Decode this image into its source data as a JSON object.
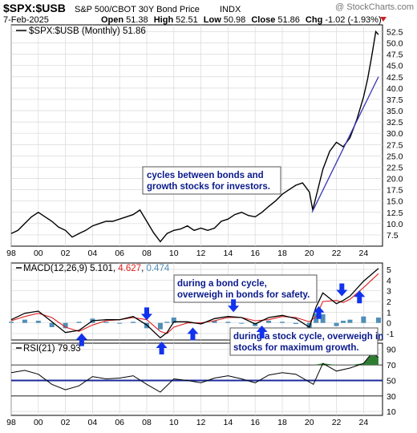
{
  "header": {
    "symbol": "$SPX:$USB",
    "description": "S&P 500/CBOT 30Y Bond Price",
    "exchange": "INDX",
    "watermark": "@ StockCharts.com",
    "date": "7-Feb-2025",
    "open_label": "Open",
    "open": "51.38",
    "high_label": "High",
    "high": "52.51",
    "low_label": "Low",
    "low": "50.98",
    "close_label": "Close",
    "close": "51.86",
    "chg_label": "Chg",
    "chg": "-1.02 (-1.93%)"
  },
  "colors": {
    "price": "#000000",
    "trendline": "#3535b8",
    "macd_line": "#000000",
    "signal_line": "#e02020",
    "histogram": "#4f8fb8",
    "rsi_line": "#000000",
    "rsi_fill": "#2e7d32",
    "rsi_50_line": "#1a2a9c",
    "annotation_text": "#0a1a8c",
    "arrow": "#1133ee",
    "grid": "#d8d8d8"
  },
  "chart_data": [
    {
      "type": "line",
      "title": "$SPX:$USB (Monthly) 51.86",
      "series": [
        {
          "name": "$SPX:$USB (Monthly) 51.86",
          "x": [
            1998,
            1998.5,
            1999,
            1999.5,
            2000,
            2000.5,
            2001,
            2001.5,
            2002,
            2002.5,
            2003,
            2003.5,
            2004,
            2004.5,
            2005,
            2005.5,
            2006,
            2006.5,
            2007,
            2007.5,
            2008,
            2008.5,
            2009,
            2009.5,
            2010,
            2010.5,
            2011,
            2011.5,
            2012,
            2012.5,
            2013,
            2013.5,
            2014,
            2014.5,
            2015,
            2015.5,
            2016,
            2016.5,
            2017,
            2017.5,
            2018,
            2018.5,
            2019,
            2019.5,
            2020,
            2020.25,
            2020.5,
            2021,
            2021.5,
            2022,
            2022.5,
            2023,
            2023.5,
            2024,
            2024.3,
            2024.6,
            2024.9,
            2025.1
          ],
          "values": [
            7.8,
            8.5,
            10,
            11.5,
            12.5,
            11.5,
            10.5,
            9.2,
            8.5,
            7,
            7.8,
            8.5,
            9.5,
            10,
            10.5,
            10.5,
            11,
            11.5,
            12,
            13,
            10.5,
            8,
            6,
            7.8,
            8.5,
            8.8,
            9.5,
            8.5,
            9,
            8.5,
            9,
            10.5,
            11,
            12,
            12.5,
            11.8,
            11.5,
            12.5,
            13.8,
            15,
            16.5,
            17.5,
            18.5,
            19,
            17,
            13,
            16,
            22,
            26,
            28,
            27,
            29,
            33,
            38,
            42,
            47,
            52.5,
            51.86
          ]
        }
      ],
      "trendline": {
        "x": [
          2020.2,
          2025.1
        ],
        "values": [
          12.5,
          42.5
        ]
      },
      "xticks": [
        "98",
        "00",
        "02",
        "04",
        "06",
        "08",
        "10",
        "12",
        "14",
        "16",
        "18",
        "20",
        "22",
        "24"
      ],
      "yticks": [
        7.5,
        10.0,
        12.5,
        15.0,
        17.5,
        20.0,
        22.5,
        25.0,
        27.5,
        30.0,
        32.5,
        35.0,
        37.5,
        40.0,
        42.5,
        45.0,
        47.5,
        50.0,
        52.5
      ],
      "ylim": [
        5,
        54
      ],
      "xlim": [
        1998,
        2025.4
      ],
      "grid": true,
      "legend": "top-left"
    },
    {
      "type": "line",
      "title": "MACD(12,26,9) 5.101, 4.627, 0.474",
      "label_name": "MACD(12,26,9)",
      "label_values": [
        "5.101",
        "4.627",
        "0.474"
      ],
      "series": [
        {
          "name": "MACD",
          "x": [
            1998,
            1999,
            2000,
            2001,
            2002,
            2003,
            2004,
            2005,
            2006,
            2007,
            2008,
            2009,
            2009.5,
            2010,
            2011,
            2012,
            2013,
            2014,
            2015,
            2016,
            2017,
            2018,
            2019,
            2020,
            2020.5,
            2021,
            2022,
            2022.5,
            2023,
            2024,
            2025.1
          ],
          "values": [
            0.3,
            0.9,
            1.1,
            0.1,
            -0.9,
            -0.7,
            0.2,
            0.3,
            0.3,
            0.6,
            -0.2,
            -1.4,
            -0.9,
            0.1,
            0.1,
            -0.1,
            0.4,
            0.6,
            0.5,
            -0.1,
            0.5,
            0.7,
            0.4,
            -0.4,
            1.5,
            2.8,
            1.8,
            2.1,
            2.5,
            3.9,
            5.1
          ]
        },
        {
          "name": "Signal",
          "x": [
            1998,
            1999,
            2000,
            2001,
            2002,
            2003,
            2004,
            2005,
            2006,
            2007,
            2008,
            2009,
            2009.5,
            2010,
            2011,
            2012,
            2013,
            2014,
            2015,
            2016,
            2017,
            2018,
            2019,
            2020,
            2020.5,
            2021,
            2022,
            2022.5,
            2023,
            2024,
            2025.1
          ],
          "values": [
            0.2,
            0.6,
            0.9,
            0.5,
            -0.4,
            -0.8,
            -0.2,
            0.2,
            0.3,
            0.5,
            0.3,
            -0.8,
            -1.0,
            -0.4,
            0.0,
            0.0,
            0.2,
            0.5,
            0.5,
            0.2,
            0.3,
            0.6,
            0.5,
            0.1,
            0.6,
            2.0,
            2.1,
            1.9,
            2.2,
            3.3,
            4.6
          ]
        }
      ],
      "yticks": [
        -1,
        0,
        1,
        2,
        3,
        4,
        5
      ],
      "ylim": [
        -1.6,
        5.6
      ],
      "xlim": [
        1998,
        2025.4
      ],
      "grid": true
    },
    {
      "type": "line",
      "title": "RSI(21) 79.93",
      "label_name": "RSI(21)",
      "label_value": "79.93",
      "series": [
        {
          "name": "RSI(21)",
          "x": [
            1998,
            1999,
            2000,
            2001,
            2002,
            2003,
            2004,
            2005,
            2006,
            2007,
            2008,
            2009,
            2010,
            2011,
            2012,
            2013,
            2014,
            2015,
            2016,
            2017,
            2018,
            2019,
            2020,
            2020.3,
            2021,
            2022,
            2023,
            2024,
            2024.6,
            2025.1
          ],
          "values": [
            60,
            63,
            58,
            45,
            38,
            43,
            55,
            52,
            53,
            56,
            45,
            35,
            52,
            50,
            47,
            53,
            56,
            52,
            47,
            57,
            60,
            58,
            48,
            45,
            72,
            62,
            66,
            72,
            85,
            80
          ]
        }
      ],
      "yticks": [
        10,
        30,
        50,
        70,
        90
      ],
      "ref_lines": [
        70,
        50,
        30
      ],
      "ylim": [
        5,
        98
      ],
      "xlim": [
        1998,
        2025.4
      ]
    }
  ],
  "annotations": {
    "bonds_stocks": "cycles between bonds and growth stocks for investors.",
    "bond_cycle": "during a bond cycle, overweigh in bonds for safety.",
    "stock_cycle": "during a stock cycle, overweigh in stocks for maximum growth."
  },
  "arrows": {
    "down": [
      2008.0,
      2014.4,
      2022.4
    ],
    "up": [
      2003.2,
      2009.1,
      2011.4,
      2016.5,
      2020.7,
      2023.7
    ]
  }
}
